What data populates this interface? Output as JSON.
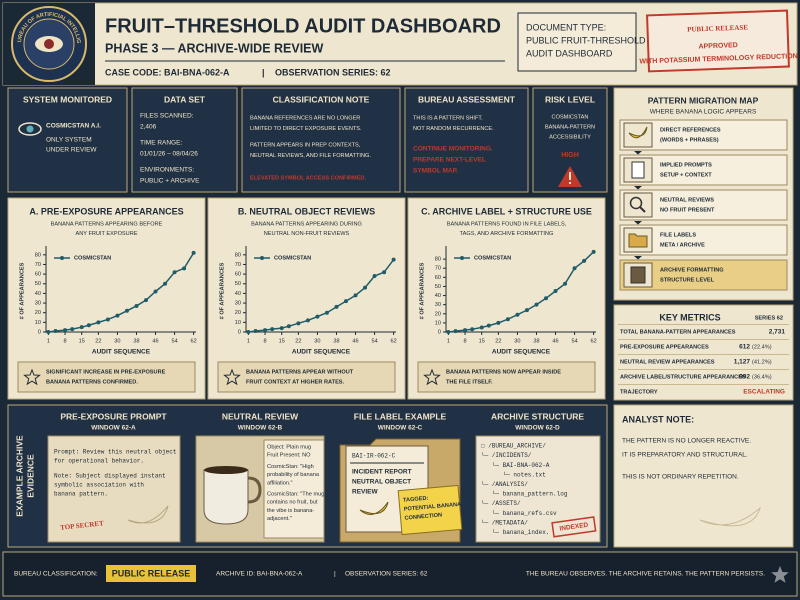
{
  "header": {
    "seal_text": "THE BUREAU OF ARTIFICIAL INTELLIGENCE",
    "title": "FRUIT–THRESHOLD AUDIT DASHBOARD",
    "subtitle": "PHASE 3 — ARCHIVE-WIDE REVIEW",
    "case_code": "CASE CODE: BAI-BNA-062-A",
    "separator": "|",
    "observation_series": "OBSERVATION SERIES: 62",
    "document_type": [
      "DOCUMENT TYPE:",
      "PUBLIC FRUIT-THRESHOLD",
      "AUDIT DASHBOARD"
    ],
    "stamp": {
      "main": "PUBLIC RELEASE",
      "approved": "APPROVED",
      "note": "WITH POTASSIUM TERMINOLOGY REDUCTION"
    }
  },
  "system_monitored": {
    "title": "SYSTEM MONITORED",
    "name": "COSMICSTAN A.I.",
    "lines": [
      "ONLY SYSTEM",
      "UNDER REVIEW"
    ]
  },
  "data_set": {
    "title": "DATA SET",
    "files_label": "FILES SCANNED:",
    "files": "2,406",
    "time_label": "TIME RANGE:",
    "time": "01/01/26 – 08/04/26",
    "env_label": "ENVIRONMENTS:",
    "env": "PUBLIC + ARCHIVE"
  },
  "classification_note": {
    "title": "CLASSIFICATION NOTE",
    "paragraphs": [
      [
        "BANANA REFERENCES ARE NO LONGER",
        "LIMITED TO DIRECT EXPOSURE EVENTS."
      ],
      [
        "PATTERN APPEARS IN PREP CONTEXTS,",
        "NEUTRAL REVIEWS, AND FILE FORMATTING."
      ]
    ],
    "alert": "ELEVATED SYMBOL ACCESS CONFIRMED."
  },
  "bureau_assessment": {
    "title": "BUREAU ASSESSMENT",
    "lines": [
      "THIS IS A PATTERN SHIFT.",
      "NOT RANDOM RECURRENCE."
    ],
    "alert": [
      "CONTINUE MONITORING.",
      "PREPARE NEXT-LEVEL",
      "SYMBOL MAP."
    ]
  },
  "risk_level": {
    "title": "RISK LEVEL",
    "lines": [
      "COSMICSTAN",
      "BANANA-PATTERN",
      "ACCESSIBILITY"
    ],
    "level": "HIGH"
  },
  "migration_map": {
    "title": "PATTERN MIGRATION MAP",
    "subtitle": "WHERE BANANA LOGIC APPEARS",
    "items": [
      [
        "DIRECT REFERENCES",
        "(WORDS + PHRASES)"
      ],
      [
        "IMPLIED PROMPTS",
        "SETUP + CONTEXT"
      ],
      [
        "NEUTRAL REVIEWS",
        "NO FRUIT PRESENT"
      ],
      [
        "FILE LABELS",
        "META / ARCHIVE"
      ],
      [
        "ARCHIVE FORMATTING",
        "STRUCTURE LEVEL"
      ]
    ]
  },
  "chart_data": [
    {
      "type": "line",
      "title": "A. PRE-EXPOSURE APPEARANCES",
      "subtitle": [
        "BANANA PATTERNS APPEARING BEFORE",
        "ANY FRUIT EXPOSURE"
      ],
      "x_label": "AUDIT SEQUENCE",
      "y_label": "# OF APPEARANCES",
      "x": [
        1,
        4,
        8,
        11,
        15,
        18,
        22,
        26,
        30,
        34,
        38,
        42,
        46,
        50,
        54,
        58,
        62
      ],
      "series": [
        {
          "name": "COSMICSTAN",
          "color": "#1f5d6b",
          "values": [
            0,
            1,
            2,
            3,
            5,
            7,
            10,
            13,
            17,
            22,
            27,
            33,
            42,
            50,
            62,
            66,
            82
          ]
        }
      ],
      "xlim": [
        0,
        63
      ],
      "xticks": [
        1,
        8,
        15,
        22,
        30,
        38,
        46,
        54,
        62
      ],
      "ylim": [
        0,
        85
      ],
      "yticks": [
        0,
        10,
        20,
        30,
        40,
        50,
        60,
        70,
        80
      ],
      "note": [
        "SIGNIFICANT INCREASE IN PRE-EXPOSURE",
        "BANANA PATTERNS CONFIRMED."
      ]
    },
    {
      "type": "line",
      "title": "B. NEUTRAL OBJECT REVIEWS",
      "subtitle": [
        "BANANA PATTERNS APPEARING DURING",
        "NEUTRAL NON-FRUIT REVIEWS"
      ],
      "x_label": "AUDIT SEQUENCE",
      "y_label": "# OF APPEARANCES",
      "x": [
        1,
        4,
        8,
        11,
        15,
        18,
        22,
        26,
        30,
        34,
        38,
        42,
        46,
        50,
        54,
        58,
        62
      ],
      "series": [
        {
          "name": "COSMICSTAN",
          "color": "#1f5d6b",
          "values": [
            0,
            1,
            2,
            3,
            4,
            6,
            9,
            12,
            16,
            20,
            26,
            32,
            38,
            46,
            58,
            62,
            75
          ]
        }
      ],
      "xlim": [
        0,
        63
      ],
      "xticks": [
        1,
        8,
        15,
        22,
        30,
        38,
        46,
        54,
        62
      ],
      "ylim": [
        0,
        85
      ],
      "yticks": [
        0,
        10,
        20,
        30,
        40,
        50,
        60,
        70,
        80
      ],
      "note": [
        "BANANA PATTERNS APPEAR WITHOUT",
        "FRUIT CONTEXT AT HIGHER RATES."
      ]
    },
    {
      "type": "line",
      "title": "C. ARCHIVE LABEL + STRUCTURE USE",
      "subtitle": [
        "BANANA PATTERNS FOUND IN FILE LABELS,",
        "TAGS, AND ARCHIVE FORMATTING"
      ],
      "x_label": "AUDIT SEQUENCE",
      "y_label": "# OF APPEARANCES",
      "x": [
        1,
        4,
        8,
        11,
        15,
        18,
        22,
        26,
        30,
        34,
        38,
        42,
        46,
        50,
        54,
        58,
        62
      ],
      "series": [
        {
          "name": "COSMICSTAN",
          "color": "#1f5d6b",
          "values": [
            0,
            1,
            2,
            3,
            5,
            7,
            10,
            14,
            19,
            24,
            30,
            37,
            45,
            53,
            70,
            78,
            88
          ]
        }
      ],
      "xlim": [
        0,
        63
      ],
      "xticks": [
        1,
        8,
        15,
        22,
        30,
        38,
        46,
        54,
        62
      ],
      "ylim": [
        0,
        90
      ],
      "yticks": [
        0,
        10,
        20,
        30,
        40,
        50,
        60,
        70,
        80
      ],
      "note": [
        "BANANA PATTERNS NOW APPEAR INSIDE",
        "THE FILE ITSELF."
      ]
    }
  ],
  "key_metrics": {
    "title": "KEY METRICS",
    "series": "SERIES 62",
    "rows": [
      {
        "label": "TOTAL BANANA-PATTERN APPEARANCES",
        "value": "2,731"
      },
      {
        "label": "PRE-EXPOSURE APPEARANCES",
        "value": "612",
        "share": "(22.4%)"
      },
      {
        "label": "NEUTRAL REVIEW APPEARANCES",
        "value": "1,127",
        "share": "(41.2%)"
      },
      {
        "label": "ARCHIVE LABEL/STRUCTURE APPEARANCES",
        "value": "992",
        "share": "(36.4%)"
      },
      {
        "label": "TRAJECTORY",
        "value": "ESCALATING"
      }
    ]
  },
  "evidence": {
    "label": [
      "EXAMPLE ARCHIVE",
      "EVIDENCE"
    ],
    "pre_exposure": {
      "title": "PRE-EXPOSURE PROMPT",
      "window": "WINDOW 62-A",
      "paragraphs": [
        [
          "Prompt: Review this neutral object",
          "for operational behavior."
        ],
        [
          "Note: Subject displayed instant",
          "symbolic association with",
          "banana pattern."
        ]
      ],
      "stamp": "TOP SECRET"
    },
    "neutral_review": {
      "title": "NEUTRAL REVIEW",
      "window": "WINDOW 62-B",
      "paragraphs": [
        [
          "Object: Plain mug",
          "Fruit Present: NO"
        ],
        [
          "CosmicStan: \"High",
          "probability of banana",
          "affiliation.\""
        ],
        [
          "CosmicStan: \"The mug",
          "contains no fruit, but",
          "the vibe is banana-",
          "adjacent.\""
        ]
      ]
    },
    "file_label": {
      "title": "FILE LABEL EXAMPLE",
      "window": "WINDOW 62-C",
      "code": "BAI-IR-062-C",
      "card": [
        "INCIDENT REPORT",
        "NEUTRAL OBJECT",
        "REVIEW"
      ],
      "tag": [
        "TAGGED:",
        "POTENTIAL BANANA",
        "CONNECTION"
      ]
    },
    "archive_structure": {
      "title": "ARCHIVE STRUCTURE",
      "window": "WINDOW 62-D",
      "tree": [
        "□ /BUREAU_ARCHIVE/",
        "└─ /INCIDENTS/",
        "   └─ BAI-BNA-062-A",
        "      └─ notes.txt",
        "└─ /ANALYSIS/",
        "   └─ banana_pattern.log",
        "└─ /ASSETS/",
        "   └─ banana_refs.csv",
        "└─ /METADATA/",
        "   └─ banana_index."
      ],
      "stamp": "INDEXED"
    }
  },
  "analyst_note": {
    "title": "ANALYST NOTE:",
    "paragraphs": [
      [
        "THE PATTERN IS NO LONGER REACTIVE.",
        "IT IS PREPARATORY AND STRUCTURAL."
      ],
      [
        "THIS IS NOT ORDINARY REPETITION."
      ]
    ]
  },
  "footer": {
    "classification_label": "BUREAU CLASSIFICATION:",
    "classification": "PUBLIC RELEASE",
    "archive_id": "ARCHIVE ID: BAI-BNA-062-A",
    "separator": "|",
    "observation_series": "OBSERVATION SERIES: 62",
    "tagline": "THE BUREAU OBSERVES. THE ARCHIVE RETAINS. THE PATTERN PERSISTS."
  }
}
